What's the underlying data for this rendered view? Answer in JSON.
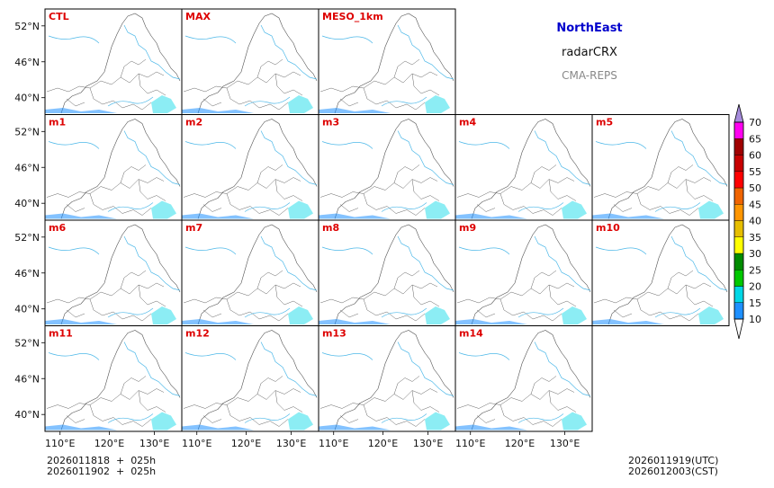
{
  "header": {
    "region": "NorthEast",
    "variable": "radarCRX",
    "system": "CMA-REPS"
  },
  "footer": {
    "init_line_utc": "2026011818  +  025h",
    "init_line_cst": "2026011902  +  025h",
    "valid_utc": "2026011919(UTC)",
    "valid_cst": "2026012003(CST)"
  },
  "colors": {
    "panel_label": "#dd0000",
    "region_title": "#0000cc",
    "map_outline": "#555555",
    "river": "#4db8e8"
  },
  "panels": [
    [
      "CTL",
      "MAX",
      "MESO_1km"
    ],
    [
      "m1",
      "m2",
      "m3",
      "m4",
      "m5"
    ],
    [
      "m6",
      "m7",
      "m8",
      "m9",
      "m10"
    ],
    [
      "m11",
      "m12",
      "m13",
      "m14"
    ]
  ],
  "lat_ticks": [
    "52°N",
    "46°N",
    "40°N"
  ],
  "lon_ticks": [
    "110°E",
    "120°E",
    "130°E"
  ],
  "colorbar": {
    "levels": [
      "10",
      "15",
      "20",
      "25",
      "30",
      "35",
      "40",
      "45",
      "50",
      "55",
      "60",
      "65",
      "70"
    ],
    "colors": [
      "#1e90ff",
      "#00d7e6",
      "#00c800",
      "#008c00",
      "#ffff00",
      "#e6be00",
      "#ff9600",
      "#f06400",
      "#ff0000",
      "#c80000",
      "#a00000",
      "#ff00f0",
      "#9600b4",
      "#a68cdc"
    ]
  }
}
